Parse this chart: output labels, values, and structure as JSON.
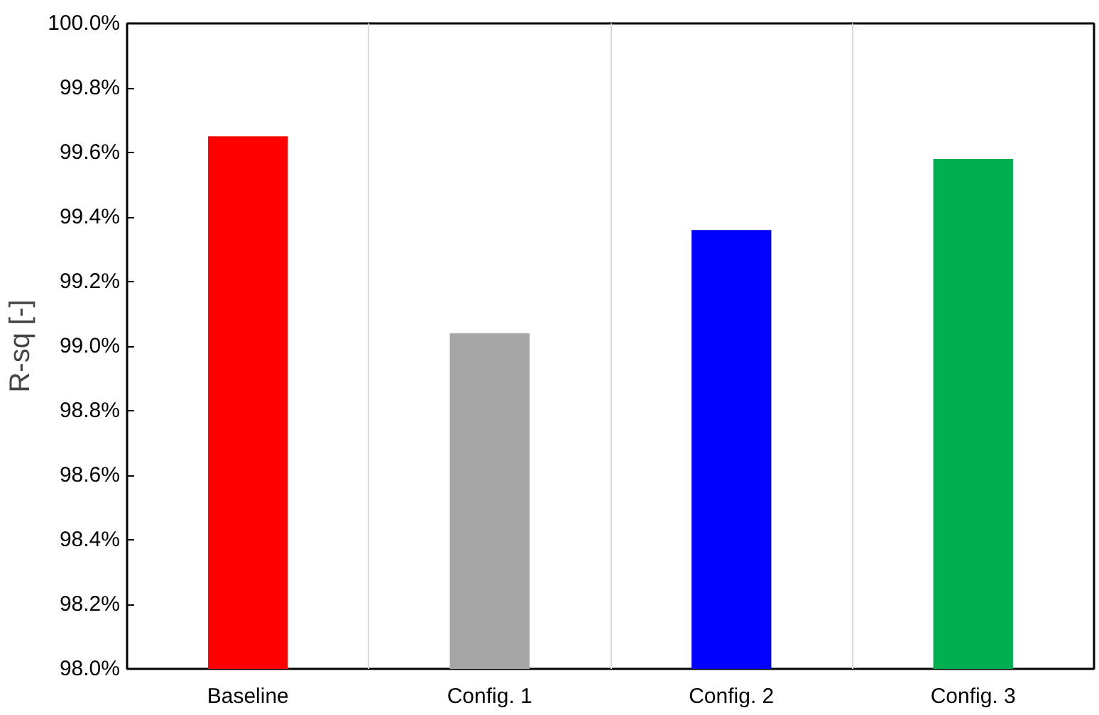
{
  "chart_data": {
    "type": "bar",
    "ylabel": "R-sq [-]",
    "categories": [
      "Baseline",
      "Config. 1",
      "Config. 2",
      "Config. 3"
    ],
    "values": [
      99.65,
      99.04,
      99.36,
      99.58
    ],
    "colors": [
      "#ff0000",
      "#a6a6a6",
      "#0000ff",
      "#00b050"
    ],
    "ylim": [
      98.0,
      100.0
    ],
    "yticks": [
      {
        "value": 98.0,
        "label": "98.0%"
      },
      {
        "value": 98.2,
        "label": "98.2%"
      },
      {
        "value": 98.4,
        "label": "98.4%"
      },
      {
        "value": 98.6,
        "label": "98.6%"
      },
      {
        "value": 98.8,
        "label": "98.8%"
      },
      {
        "value": 99.0,
        "label": "99.0%"
      },
      {
        "value": 99.2,
        "label": "99.2%"
      },
      {
        "value": 99.4,
        "label": "99.4%"
      },
      {
        "value": 99.6,
        "label": "99.6%"
      },
      {
        "value": 99.8,
        "label": "99.8%"
      },
      {
        "value": 100.0,
        "label": "100.0%"
      }
    ],
    "grid": "x"
  }
}
